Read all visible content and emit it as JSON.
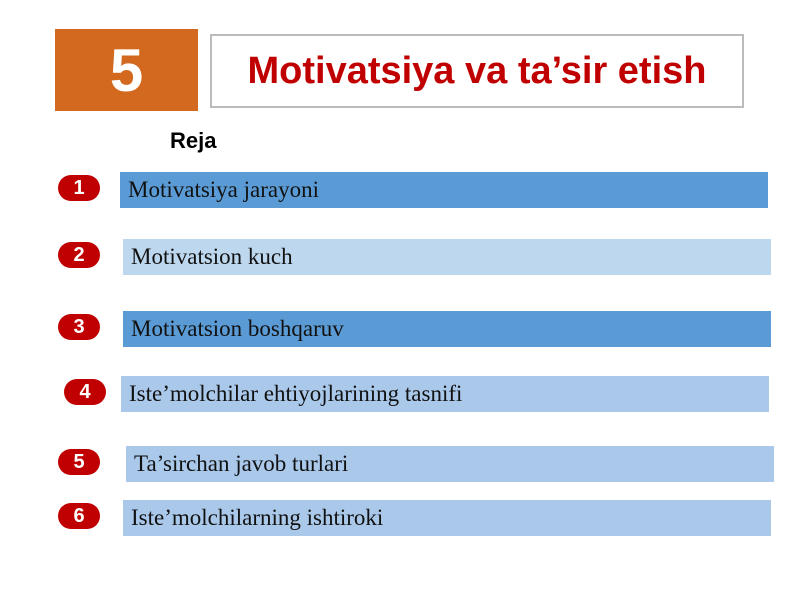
{
  "header": {
    "number": "5",
    "title": "Motivatsiya va ta’sir etish"
  },
  "plan": {
    "title": "Reja",
    "items": [
      {
        "number": "1",
        "text": "Motivatsiya jarayoni"
      },
      {
        "number": "2",
        "text": "Motivatsion kuch"
      },
      {
        "number": "3",
        "text": "Motivatsion boshqaruv"
      },
      {
        "number": "4",
        "text": "Iste’molchilar ehtiyojlarining tasnifi"
      },
      {
        "number": "5",
        "text": "Ta’sirchan javob turlari"
      },
      {
        "number": "6",
        "text": "Iste’molchilarning ishtiroki"
      }
    ]
  }
}
